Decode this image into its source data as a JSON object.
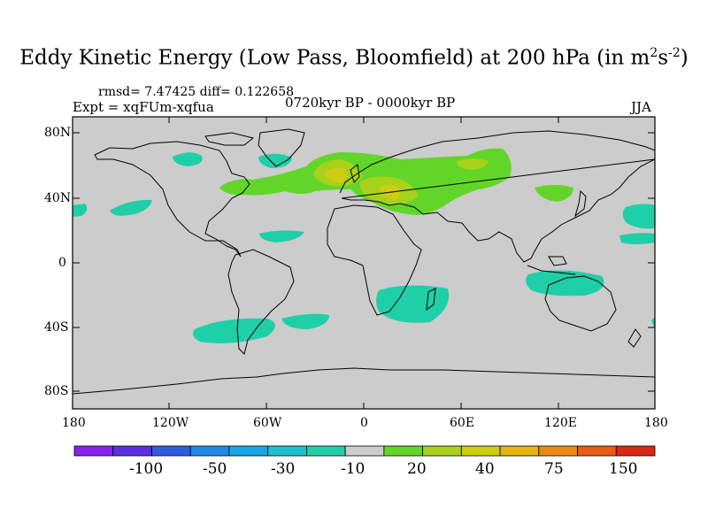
{
  "title": {
    "prefix": "Eddy Kinetic Energy (Low Pass, Bloomfield) at 200 hPa (in m",
    "exp1": "2",
    "mid": "s",
    "exp2": "-2",
    "suffix": ")"
  },
  "stats": "rmsd= 7.47425 diff= 0.122658",
  "experiment": "Expt = xqFUm-xqfua",
  "period": "0720kyr BP - 0000kyr BP",
  "season": "JJA",
  "lat_labels": [
    "80N",
    "40N",
    "0",
    "40S",
    "80S"
  ],
  "lon_labels": [
    "180",
    "120W",
    "60W",
    "0",
    "60E",
    "120E",
    "180"
  ],
  "colorbar": {
    "colors": [
      "#8a1ff0",
      "#5a2ee0",
      "#2e5ce0",
      "#1f8ae8",
      "#14a8e6",
      "#1fbfd2",
      "#1fcfa8",
      "#cccccc",
      "#62d628",
      "#a6d21c",
      "#cfcc14",
      "#e6b40e",
      "#ec8a14",
      "#ea5a14",
      "#d82812"
    ],
    "labels": [
      "-100",
      "-50",
      "-30",
      "-10",
      "20",
      "40",
      "75",
      "150"
    ]
  },
  "colors": {
    "land_bg": "#cccccc",
    "coast": "#000000",
    "teal": "#1fcfa8",
    "green": "#62d628",
    "yellow_green": "#a6d21c",
    "yellow": "#cfcc14"
  }
}
